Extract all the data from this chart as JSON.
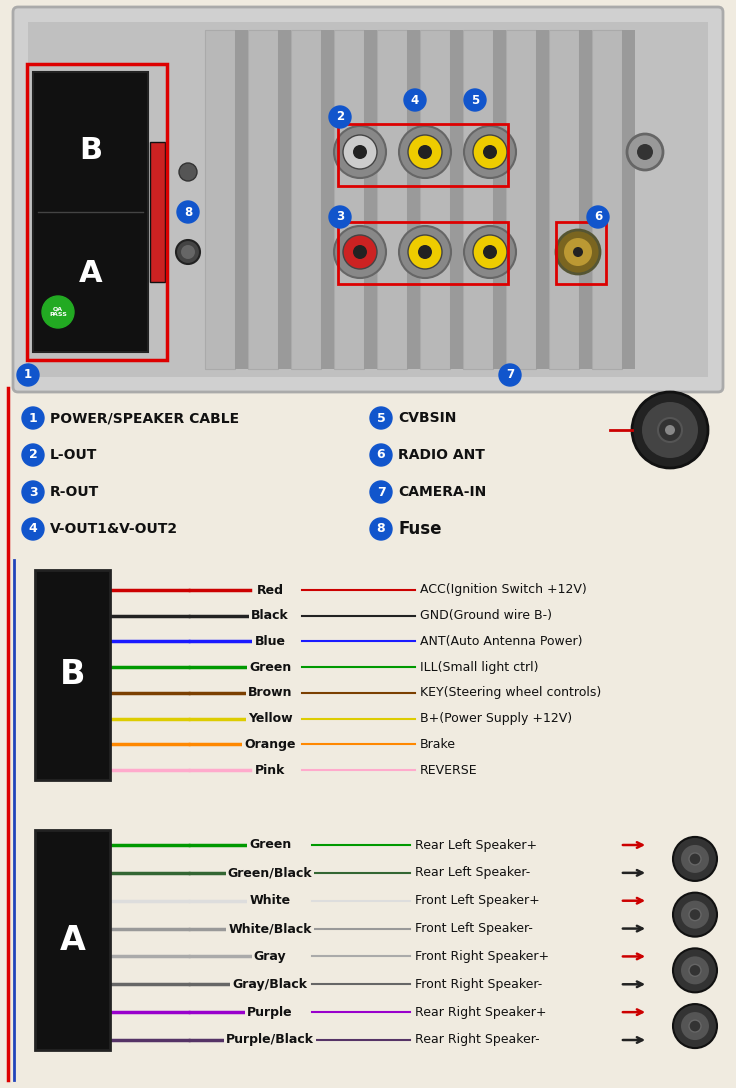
{
  "background_color": "#f0ebe0",
  "B_wires": [
    {
      "color": "#cc0000",
      "name": "Red",
      "label": "ACC(Ignition Switch +12V)"
    },
    {
      "color": "#222222",
      "name": "Black",
      "label": "GND(Ground wire B-)"
    },
    {
      "color": "#1a1aff",
      "name": "Blue",
      "label": "ANT(Auto Antenna Power)"
    },
    {
      "color": "#009900",
      "name": "Green",
      "label": "ILL(Small light ctrl)"
    },
    {
      "color": "#7b3f00",
      "name": "Brown",
      "label": "KEY(Steering wheel controls)"
    },
    {
      "color": "#ddcc00",
      "name": "Yellow",
      "label": "B+(Power Supply +12V)"
    },
    {
      "color": "#ff8800",
      "name": "Orange",
      "label": "Brake"
    },
    {
      "color": "#ffaacc",
      "name": "Pink",
      "label": "REVERSE"
    }
  ],
  "A_wires": [
    {
      "color": "#009900",
      "name": "Green",
      "label": "Rear Left Speaker+",
      "plus": true
    },
    {
      "color": "#336633",
      "name": "Green/Black",
      "label": "Rear Left Speaker-",
      "plus": false
    },
    {
      "color": "#dddddd",
      "name": "White",
      "label": "Front Left Speaker+",
      "plus": true
    },
    {
      "color": "#999999",
      "name": "White/Black",
      "label": "Front Left Speaker-",
      "plus": false
    },
    {
      "color": "#aaaaaa",
      "name": "Gray",
      "label": "Front Right Speaker+",
      "plus": true
    },
    {
      "color": "#666666",
      "name": "Gray/Black",
      "label": "Front Right Speaker-",
      "plus": false
    },
    {
      "color": "#9900cc",
      "name": "Purple",
      "label": "Rear Right Speaker+",
      "plus": true
    },
    {
      "color": "#553366",
      "name": "Purple/Black",
      "label": "Rear Right Speaker-",
      "plus": false
    }
  ],
  "connector_labels": [
    {
      "num": "1",
      "text": "POWER/SPEAKER CABLE",
      "col": 0
    },
    {
      "num": "2",
      "text": "L-OUT",
      "col": 0
    },
    {
      "num": "3",
      "text": "R-OUT",
      "col": 0
    },
    {
      "num": "4",
      "text": "V-OUT1&V-OUT2",
      "col": 0
    },
    {
      "num": "5",
      "text": "CVBSIN",
      "col": 1
    },
    {
      "num": "6",
      "text": "RADIO ANT",
      "col": 1
    },
    {
      "num": "7",
      "text": "CAMERA-IN",
      "col": 1
    },
    {
      "num": "8",
      "text": "Fuse",
      "col": 1
    }
  ]
}
